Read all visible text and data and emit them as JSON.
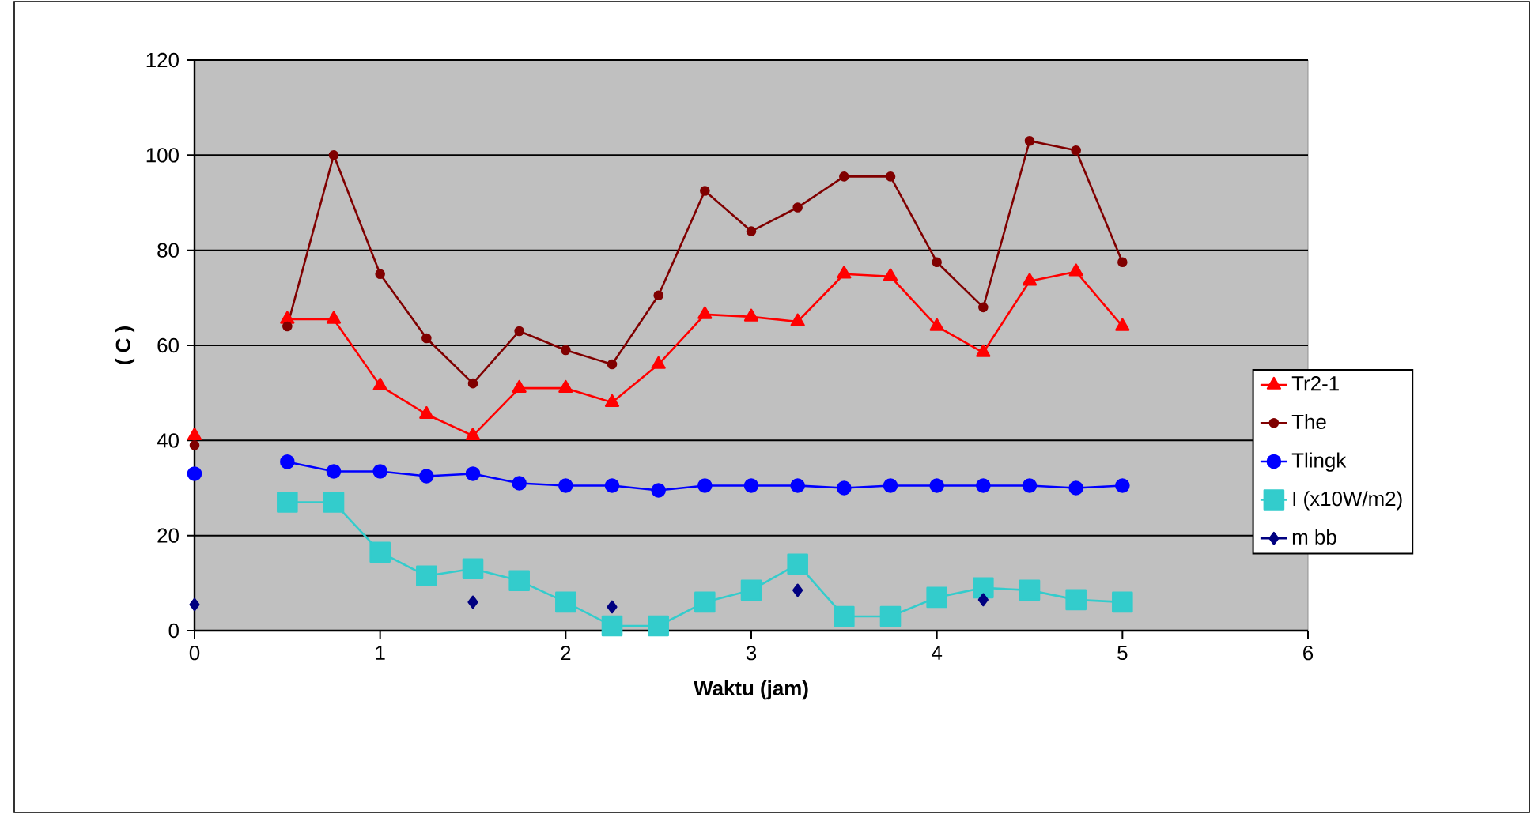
{
  "chart_data": {
    "type": "line",
    "xlabel": "Waktu (jam)",
    "ylabel": "( C )",
    "x": [
      0,
      0.25,
      0.5,
      0.75,
      1,
      1.25,
      1.5,
      1.75,
      2,
      2.25,
      2.5,
      2.75,
      3,
      3.25,
      3.5,
      3.75,
      4,
      4.25,
      4.5,
      4.75,
      5
    ],
    "xlim": [
      0,
      6
    ],
    "xticks": [
      0,
      1,
      2,
      3,
      4,
      5,
      6
    ],
    "ylim": [
      0,
      120
    ],
    "yticks": [
      0,
      20,
      40,
      60,
      80,
      100,
      120
    ],
    "grid": "y",
    "legend": "right",
    "line_style": "solid",
    "series": [
      {
        "name": "Tr2-1",
        "color": "#ff0000",
        "marker": "triangle",
        "values": [
          41,
          null,
          65.5,
          65.5,
          51.5,
          45.5,
          41,
          51,
          51,
          48,
          56,
          66.5,
          66,
          65,
          75,
          74.5,
          64,
          58.5,
          73.5,
          75.5,
          64
        ]
      },
      {
        "name": "The",
        "color": "#800000",
        "marker": "circle",
        "values": [
          39,
          null,
          64,
          100,
          75,
          61.5,
          52,
          63,
          59,
          56,
          70.5,
          92.5,
          84,
          89,
          95.5,
          95.5,
          77.5,
          68,
          103,
          101,
          77.5
        ]
      },
      {
        "name": "Tlingk",
        "color": "#0000ff",
        "marker": "circle",
        "values": [
          33,
          null,
          35.5,
          33.5,
          33.5,
          32.5,
          33,
          31,
          30.5,
          30.5,
          29.5,
          30.5,
          30.5,
          30.5,
          30,
          30.5,
          30.5,
          30.5,
          30.5,
          30,
          30.5
        ]
      },
      {
        "name": "I (x10W/m2)",
        "color": "#33cccc",
        "marker": "square",
        "values": [
          null,
          null,
          27,
          27,
          16.5,
          11.5,
          13,
          10.5,
          6,
          1,
          1,
          6,
          8.5,
          14,
          3,
          3,
          7,
          9,
          8.5,
          6.5,
          6
        ]
      },
      {
        "name": "m bb",
        "color": "#000080",
        "marker": "diamond",
        "values": [
          5.5,
          null,
          null,
          null,
          null,
          null,
          6,
          null,
          null,
          5,
          null,
          null,
          null,
          8.5,
          null,
          null,
          null,
          6.5,
          null,
          null,
          null
        ]
      }
    ]
  }
}
